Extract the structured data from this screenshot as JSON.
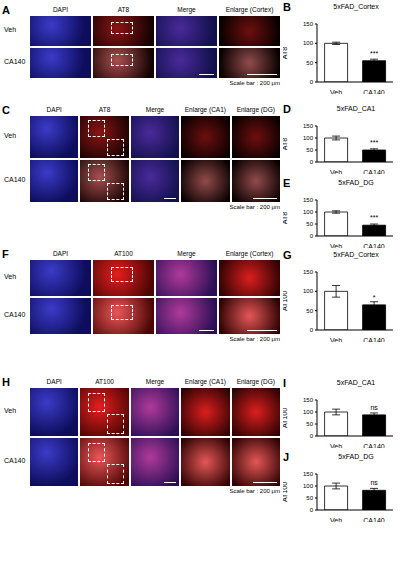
{
  "panels": [
    {
      "label": "A",
      "columns": [
        "DAPI",
        "AT8",
        "Merge",
        "Enlarge (Cortex)"
      ],
      "rows": [
        "Veh",
        "CA140"
      ],
      "scale_bar": "Scale bar : 200 μm"
    },
    {
      "label": "C",
      "columns": [
        "DAPI",
        "AT8",
        "Merge",
        "Enlarge (CA1)",
        "Enlarge (DG)"
      ],
      "rows": [
        "Veh",
        "CA140"
      ],
      "scale_bar": "Scale bar : 200 μm"
    },
    {
      "label": "F",
      "columns": [
        "DAPI",
        "AT100",
        "Merge",
        "Enlarge (Cortex)"
      ],
      "rows": [
        "Veh",
        "CA140"
      ],
      "scale_bar": "Scale bar : 200 μm"
    },
    {
      "label": "H",
      "columns": [
        "DAPI",
        "AT100",
        "Merge",
        "Enlarge (CA1)",
        "Enlarge (DG)"
      ],
      "rows": [
        "Veh",
        "CA140"
      ],
      "scale_bar": "Scale bar : 200 μm"
    }
  ],
  "chart_data": [
    {
      "type": "bar",
      "label": "B",
      "title": "5xFAD_Cortex",
      "y_label": "AT8",
      "categories": [
        "Veh",
        "CA140"
      ],
      "values": [
        100,
        55
      ],
      "error": [
        3,
        4
      ],
      "annotations": [
        null,
        "***"
      ],
      "colors": [
        "#ffffff",
        "#000000"
      ],
      "ylim": [
        0,
        150
      ],
      "yticks": [
        0,
        50,
        100,
        150
      ]
    },
    {
      "type": "bar",
      "label": "D",
      "title": "5xFAD_CA1",
      "y_label": "AT8",
      "categories": [
        "Veh",
        "CA140"
      ],
      "values": [
        100,
        50
      ],
      "error": [
        8,
        5
      ],
      "annotations": [
        null,
        "***"
      ],
      "colors": [
        "#ffffff",
        "#000000"
      ],
      "ylim": [
        0,
        150
      ],
      "yticks": [
        0,
        50,
        100,
        150
      ]
    },
    {
      "type": "bar",
      "label": "E",
      "title": "5xFAD_DG",
      "y_label": "AT8",
      "categories": [
        "Veh",
        "CA140"
      ],
      "values": [
        100,
        45
      ],
      "error": [
        5,
        5
      ],
      "annotations": [
        null,
        "***"
      ],
      "colors": [
        "#ffffff",
        "#000000"
      ],
      "ylim": [
        0,
        150
      ],
      "yticks": [
        0,
        50,
        100,
        150
      ]
    },
    {
      "type": "bar",
      "label": "G",
      "title": "5xFAD_Cortex",
      "y_label": "AT100",
      "categories": [
        "Veh",
        "CA140"
      ],
      "values": [
        100,
        65
      ],
      "error": [
        15,
        8
      ],
      "annotations": [
        null,
        "*"
      ],
      "colors": [
        "#ffffff",
        "#000000"
      ],
      "ylim": [
        0,
        150
      ],
      "yticks": [
        0,
        50,
        100,
        150
      ]
    },
    {
      "type": "bar",
      "label": "I",
      "title": "5xFAD_CA1",
      "y_label": "AT100",
      "categories": [
        "Veh",
        "CA140"
      ],
      "values": [
        100,
        88
      ],
      "error": [
        12,
        8
      ],
      "annotations": [
        null,
        "ns"
      ],
      "colors": [
        "#ffffff",
        "#000000"
      ],
      "ylim": [
        0,
        150
      ],
      "yticks": [
        0,
        50,
        100,
        150
      ]
    },
    {
      "type": "bar",
      "label": "J",
      "title": "5xFAD_DG",
      "y_label": "AT100",
      "categories": [
        "Veh",
        "CA140"
      ],
      "values": [
        100,
        82
      ],
      "error": [
        12,
        8
      ],
      "annotations": [
        null,
        "ns"
      ],
      "colors": [
        "#ffffff",
        "#000000"
      ],
      "ylim": [
        0,
        150
      ],
      "yticks": [
        0,
        50,
        100,
        150
      ]
    }
  ]
}
